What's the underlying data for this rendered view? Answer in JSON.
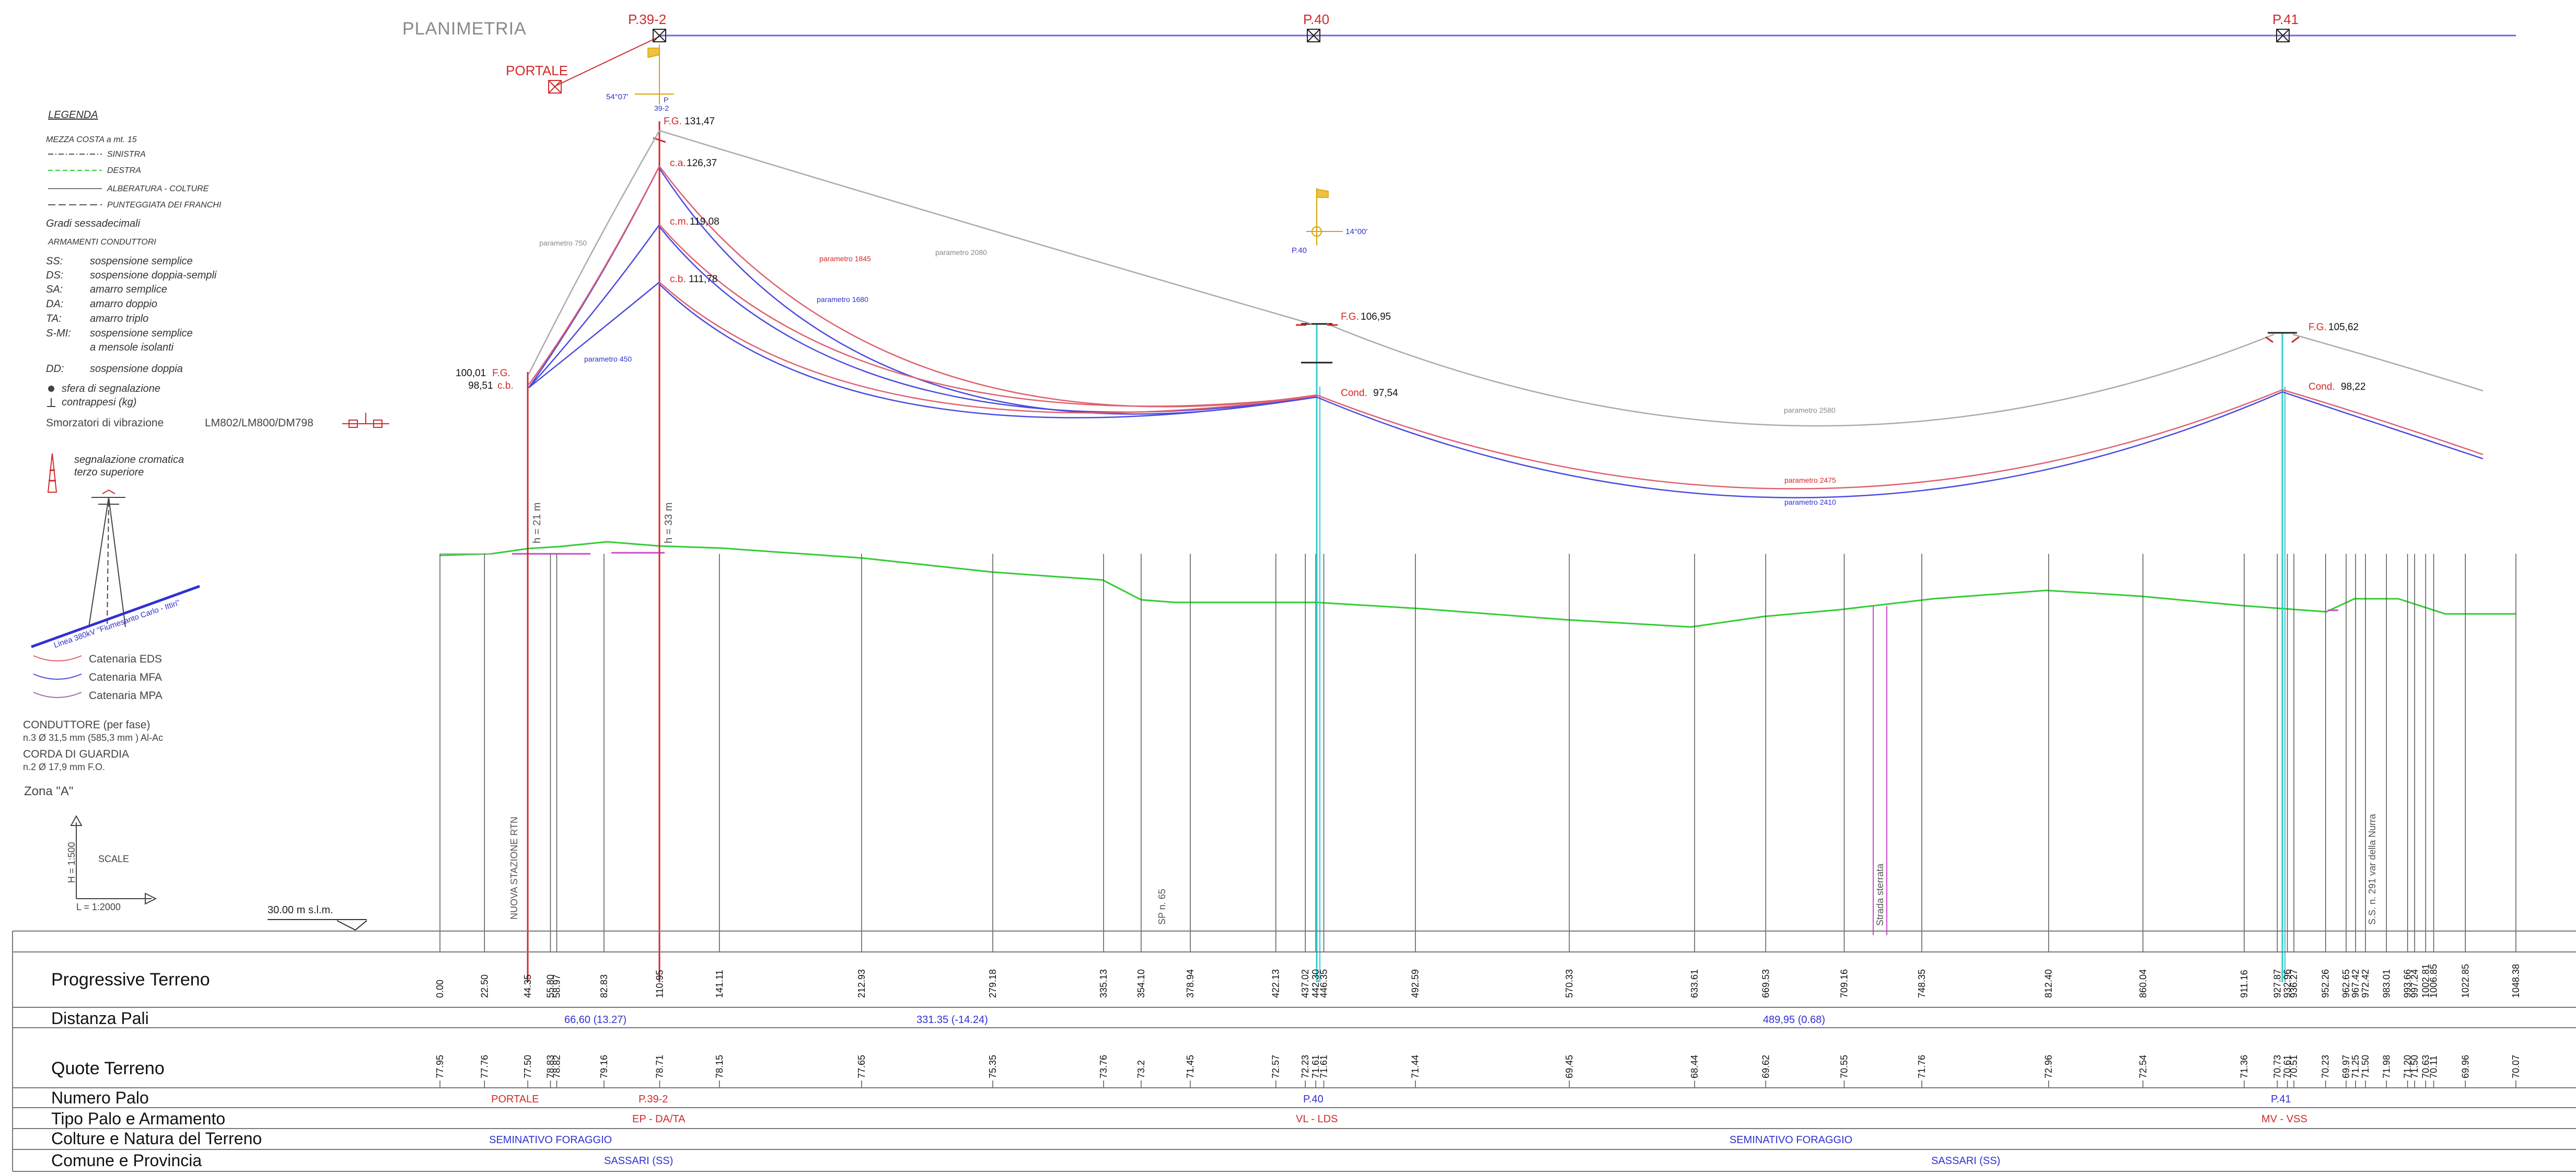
{
  "header": {
    "planimetria": "PLANIMETRIA"
  },
  "poles_plan": [
    {
      "label": "P.39-2",
      "color": "#d12a2a"
    },
    {
      "label": "P.40",
      "color": "#d12a2a"
    },
    {
      "label": "P.41",
      "color": "#d12a2a"
    }
  ],
  "portale": {
    "label": "PORTALE",
    "angle": "54°07'",
    "small_label": "39-2",
    "p_label": "P"
  },
  "p40_symbol": {
    "angle": "14°00'",
    "label": "P.40"
  },
  "legend": {
    "title": "LEGENDA",
    "mezza_costa": "MEZZA COSTA a mt. 15",
    "sinistra": "SINISTRA",
    "destra": "DESTRA",
    "alberatura": "ALBERATURA - COLTURE",
    "punteggiata": "PUNTEGGIATA DEI FRANCHI",
    "gradi": "Gradi sessadecimali",
    "armamenti": "ARMAMENTI CONDUTTORI",
    "abbrev": [
      {
        "code": "SS:",
        "desc": "sospensione semplice"
      },
      {
        "code": "DS:",
        "desc": "sospensione doppia-sempli"
      },
      {
        "code": "SA:",
        "desc": "amarro semplice"
      },
      {
        "code": "DA:",
        "desc": "amarro doppio"
      },
      {
        "code": "TA:",
        "desc": "amarro triplo"
      },
      {
        "code": "S-MI:",
        "desc": "sospensione semplice"
      },
      {
        "code": "",
        "desc": "a mensole isolanti"
      },
      {
        "code": "DD:",
        "desc": "sospensione doppia"
      }
    ],
    "sfera": "sfera di segnalazione",
    "contrappesi": "contrappesi (kg)",
    "smorzatori": "Smorzatori di vibrazione",
    "smorzatori_model": "LM802/LM800/DM798",
    "segnalazione_1": "segnalazione cromatica",
    "segnalazione_2": "terzo superiore",
    "linea": "Linea 380kV \"Fiumesanto Carlo - Ittiri\"",
    "catenaria": [
      {
        "label": "Catenaria EDS",
        "color": "#e0606e"
      },
      {
        "label": "Catenaria MFA",
        "color": "#4a4ae0"
      },
      {
        "label": "Catenaria MPA",
        "color": "#9a6ab8"
      }
    ],
    "conduttore_1": "CONDUTTORE (per fase)",
    "conduttore_2": "n.3 Ø 31,5 mm (585,3 mm ) Al-Ac",
    "corda_1": "CORDA DI GUARDIA",
    "corda_2": "n.2 Ø 17,9 mm F.O.",
    "zona": "Zona \"A\"",
    "scale": "SCALE",
    "h_scale": "H = 1:500",
    "l_scale": "L = 1:2000",
    "datum": "30.00 m s.l.m."
  },
  "profile": {
    "left_pole": {
      "fg_value": "100,01",
      "fg_label": "F.G.",
      "cb_value": "98,51",
      "cb_label": "c.b.",
      "height": "h = 21 m"
    },
    "p39": {
      "fg_label": "F.G.",
      "fg_value": "131,47",
      "ca_label": "c.a.",
      "ca_value": "126,37",
      "cm_label": "c.m.",
      "cm_value": "119,08",
      "cb_label": "c.b.",
      "cb_value": "111,78",
      "height": "h = 33 m"
    },
    "p40": {
      "fg_label": "F.G.",
      "fg_value": "106,95",
      "cond_label": "Cond.",
      "cond_value": "97,54"
    },
    "p41": {
      "fg_label": "F.G.",
      "fg_value": "105,62",
      "cond_label": "Cond.",
      "cond_value": "98,22"
    },
    "params": {
      "p750": "parametro 750",
      "p2080": "parametro 2080",
      "p1845": "parametro 1845",
      "p1680": "parametro 1680",
      "p450": "parametro 450",
      "p2580": "parametro 2580",
      "p2475": "parametro 2475",
      "p2410": "parametro 2410"
    },
    "vertical_labels": {
      "nuova_stazione": "NUOVA STAZIONE RTN",
      "sp65": "SP n. 65",
      "strada": "Strada sterrata",
      "ss291": "S.S. n. 291 var della Nurra"
    }
  },
  "table": {
    "rows": {
      "progressive": "Progressive Terreno",
      "distanza": "Distanza Pali",
      "quote": "Quote Terreno",
      "numero": "Numero Palo",
      "tipo": "Tipo Palo e Armamento",
      "colture": "Colture e Natura del Terreno",
      "comune": "Comune e Provincia"
    },
    "stations": [
      {
        "prog": "0.00",
        "quota": "77.95"
      },
      {
        "prog": "22.50",
        "quota": "77.76"
      },
      {
        "prog": "44.35",
        "quota": "77.50"
      },
      {
        "prog": "55.80",
        "quota": "78.83"
      },
      {
        "prog": "58.97",
        "quota": "78.82"
      },
      {
        "prog": "82.83",
        "quota": "79.16"
      },
      {
        "prog": "110.95",
        "quota": "78.71"
      },
      {
        "prog": "141.11",
        "quota": "78.15"
      },
      {
        "prog": "212.93",
        "quota": "77.65"
      },
      {
        "prog": "279.18",
        "quota": "75.35"
      },
      {
        "prog": "335.13",
        "quota": "73.76"
      },
      {
        "prog": "354.10",
        "quota": "73.2"
      },
      {
        "prog": "378.94",
        "quota": "71.45"
      },
      {
        "prog": "422.13",
        "quota": "72.57"
      },
      {
        "prog": "437.02",
        "quota": "72.23"
      },
      {
        "prog": "442.30",
        "quota": "71.61"
      },
      {
        "prog": "446.35",
        "quota": "71.61"
      },
      {
        "prog": "492.59",
        "quota": "71.44"
      },
      {
        "prog": "570.33",
        "quota": "69.45"
      },
      {
        "prog": "633.61",
        "quota": "68.44"
      },
      {
        "prog": "669.53",
        "quota": "69.62"
      },
      {
        "prog": "709.16",
        "quota": "70.55"
      },
      {
        "prog": "748.35",
        "quota": "71.76"
      },
      {
        "prog": "812.40",
        "quota": "72.96"
      },
      {
        "prog": "860.04",
        "quota": "72.54"
      },
      {
        "prog": "911.16",
        "quota": "71.36"
      },
      {
        "prog": "927.87",
        "quota": "70.73"
      },
      {
        "prog": "932.96",
        "quota": "70.61"
      },
      {
        "prog": "936.27",
        "quota": "70.51"
      },
      {
        "prog": "952.26",
        "quota": "70.23"
      },
      {
        "prog": "962.65",
        "quota": "69.97"
      },
      {
        "prog": "967.42",
        "quota": "71.25"
      },
      {
        "prog": "972.42",
        "quota": "71.50"
      },
      {
        "prog": "983.01",
        "quota": "71.98"
      },
      {
        "prog": "993.66",
        "quota": "71.20"
      },
      {
        "prog": "997.24",
        "quota": "71.50"
      },
      {
        "prog": "1002.81",
        "quota": "70.63"
      },
      {
        "prog": "1006.85",
        "quota": "70.11"
      },
      {
        "prog": "1022.85",
        "quota": "69.96"
      },
      {
        "prog": "1048.38",
        "quota": "70.07"
      }
    ],
    "distanze": [
      "66,60 (13.27)",
      "331.35 (-14.24)",
      "489,95 (0.68)"
    ],
    "numeri": [
      {
        "label": "PORTALE",
        "color": "#d12a2a"
      },
      {
        "label": "P.39-2",
        "color": "#d12a2a"
      },
      {
        "label": "P.40",
        "color": "#3030d0"
      },
      {
        "label": "P.41",
        "color": "#3030d0"
      }
    ],
    "tipi": [
      {
        "label": "EP - DA/TA",
        "color": "#d12a2a"
      },
      {
        "label": "VL - LDS",
        "color": "#d12a2a"
      },
      {
        "label": "MV - VSS",
        "color": "#d12a2a"
      }
    ],
    "colture": [
      "SEMINATIVO  FORAGGIO",
      "SEMINATIVO  FORAGGIO"
    ],
    "comune": [
      "SASSARI  (SS)",
      "SASSARI  (SS)"
    ]
  }
}
